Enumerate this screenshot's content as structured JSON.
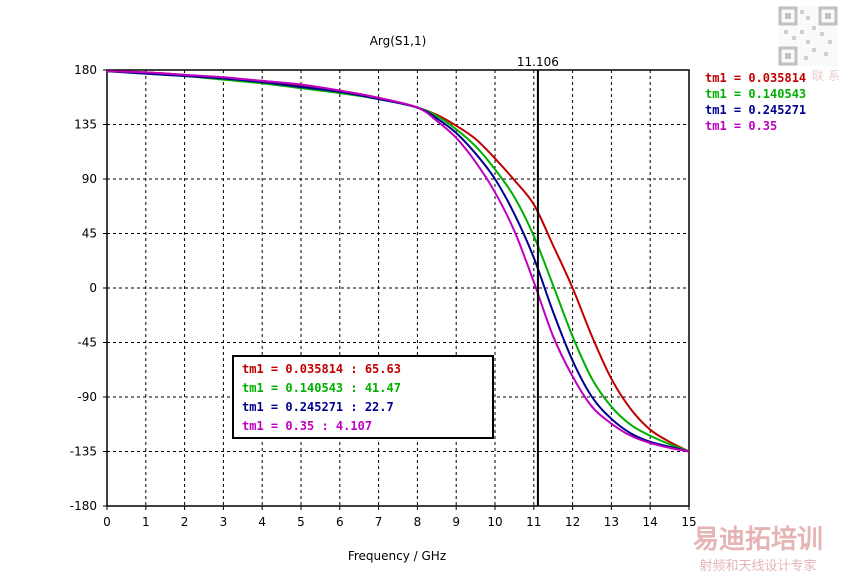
{
  "chart_data": {
    "type": "line",
    "title": "Arg(S1,1)",
    "xlabel": "Frequency / GHz",
    "ylabel": "",
    "xlim": [
      0,
      15
    ],
    "ylim": [
      -180,
      180
    ],
    "x_ticks": [
      0,
      1,
      2,
      3,
      4,
      5,
      6,
      7,
      8,
      9,
      10,
      11,
      12,
      13,
      14,
      15
    ],
    "y_ticks": [
      180,
      135,
      90,
      45,
      0,
      -45,
      -90,
      -135,
      -180
    ],
    "grid": "dashed",
    "marker": {
      "x": 11.106,
      "label": "11.106"
    },
    "x": [
      0,
      1,
      2,
      3,
      4,
      5,
      6,
      7,
      8,
      8.5,
      9,
      9.5,
      10,
      10.5,
      11,
      11.5,
      12,
      12.5,
      13,
      13.5,
      14,
      14.5,
      15
    ],
    "series": [
      {
        "name": "tm1 = 0.035814",
        "color": "#c00000",
        "values": [
          179,
          178,
          176,
          173,
          171,
          167,
          163,
          157,
          149,
          143,
          134,
          123,
          107,
          89,
          69,
          35,
          0,
          -40,
          -75,
          -100,
          -117,
          -127,
          -135
        ]
      },
      {
        "name": "tm1 = 0.140543",
        "color": "#00b000",
        "values": [
          179,
          177,
          175,
          172,
          169,
          165,
          161,
          156,
          149,
          142,
          131,
          117,
          98,
          75,
          43,
          2,
          -40,
          -75,
          -98,
          -113,
          -122,
          -129,
          -135
        ]
      },
      {
        "name": "tm1 = 0.245271",
        "color": "#000090",
        "values": [
          179,
          177,
          175,
          173,
          170,
          166,
          162,
          156,
          149,
          140,
          128,
          111,
          90,
          61,
          25,
          -20,
          -60,
          -90,
          -108,
          -120,
          -127,
          -131,
          -135
        ]
      },
      {
        "name": "tm1 = 0.35",
        "color": "#c000c0",
        "values": [
          179,
          178,
          176,
          174,
          171,
          168,
          163,
          157,
          149,
          138,
          124,
          104,
          79,
          47,
          5,
          -40,
          -73,
          -98,
          -112,
          -122,
          -128,
          -132,
          -135
        ]
      }
    ],
    "legend_position": "right",
    "annotation_box": {
      "entries": [
        {
          "text": "tm1 = 0.035814 : 65.63",
          "color": "#c00000"
        },
        {
          "text": "tm1 = 0.140543 : 41.47",
          "color": "#00b000"
        },
        {
          "text": "tm1 = 0.245271 : 22.7",
          "color": "#000090"
        },
        {
          "text": "tm1 = 0.35 : 4.107",
          "color": "#c000c0"
        }
      ]
    }
  },
  "watermark": {
    "title": "易迪拓培训",
    "subtitle": "射频和天线设计专家",
    "corner_text": "联 系"
  }
}
